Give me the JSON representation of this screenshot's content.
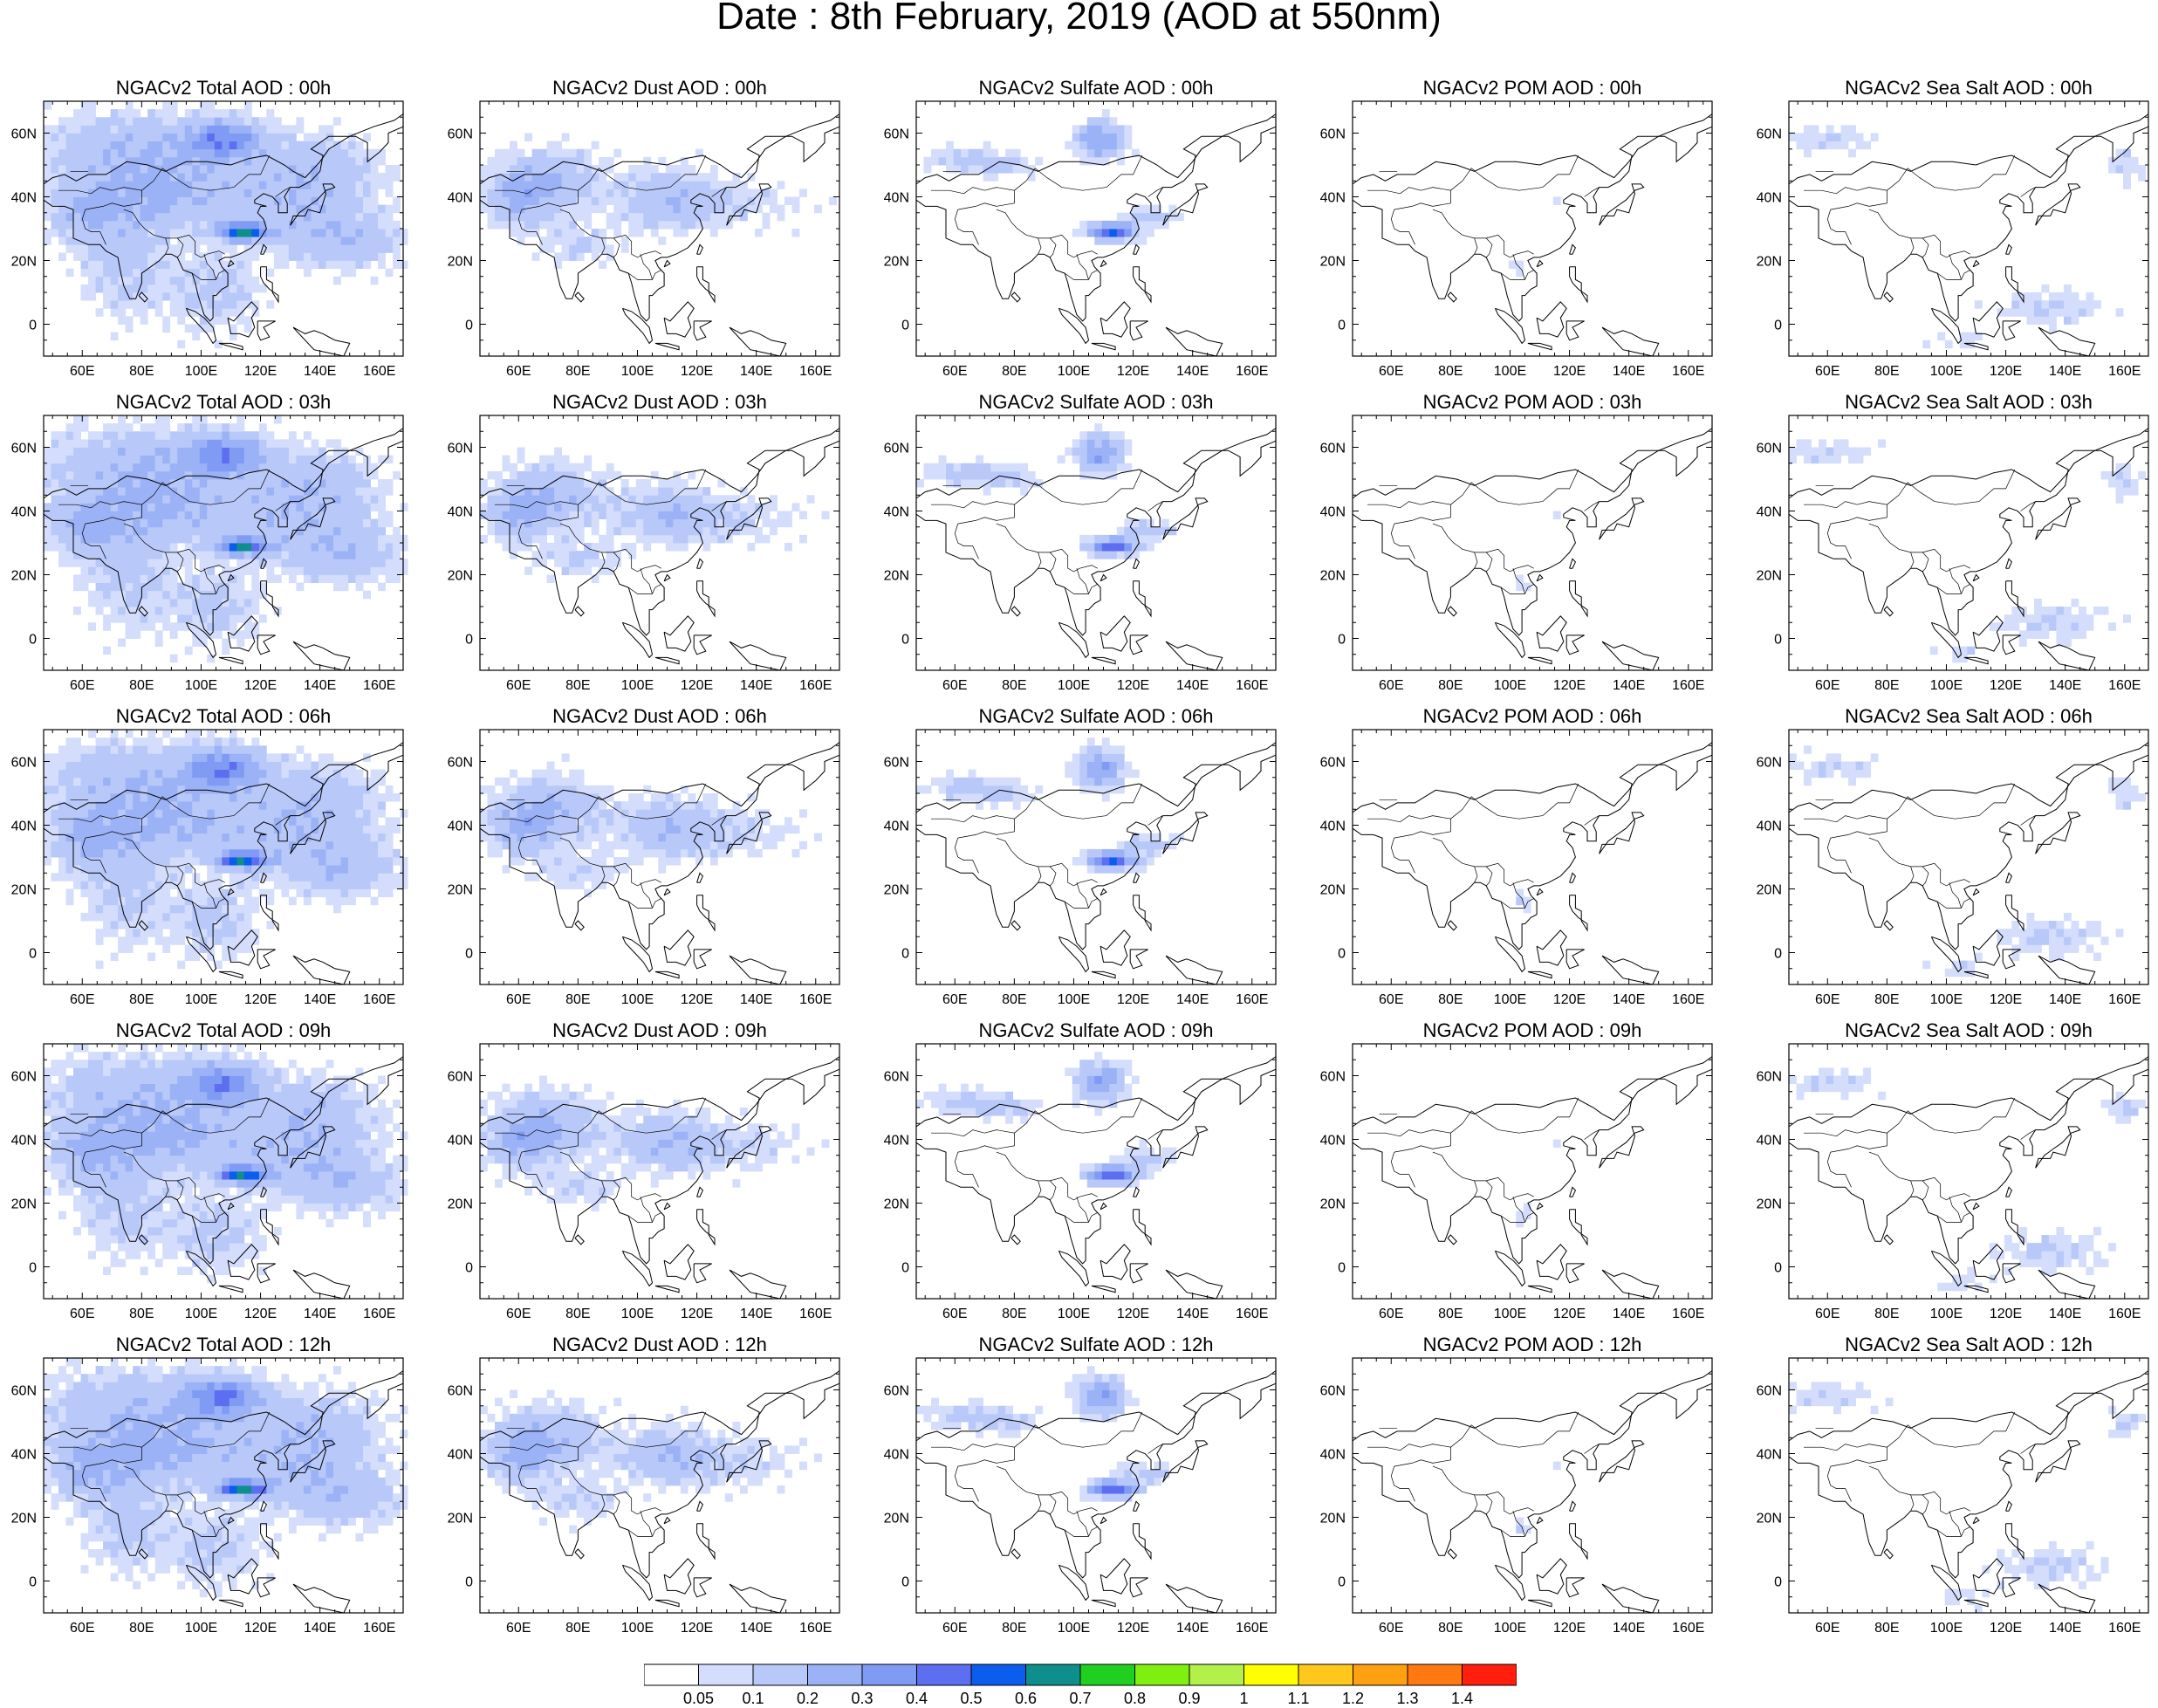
{
  "title": "Date : 8th February, 2019 (AOD at 550nm)",
  "map": {
    "lon_range": [
      47,
      168
    ],
    "lat_range": [
      -10,
      70
    ],
    "lon_ticks": [
      "60E",
      "80E",
      "100E",
      "120E",
      "140E",
      "160E"
    ],
    "lat_ticks": [
      "60N",
      "40N",
      "20N",
      "0"
    ],
    "lon_tick_values": [
      60,
      80,
      100,
      120,
      140,
      160
    ],
    "lat_tick_values": [
      60,
      40,
      20,
      0
    ],
    "background": "#ffffff",
    "coastline_color": "#000000"
  },
  "panel_titles": [
    [
      "NGACv2 Total AOD : 00h",
      "NGACv2 Dust AOD : 00h",
      "NGACv2 Sulfate AOD : 00h",
      "NGACv2 POM AOD : 00h",
      "NGACv2 Sea Salt AOD : 00h"
    ],
    [
      "NGACv2 Total AOD : 03h",
      "NGACv2 Dust AOD : 03h",
      "NGACv2 Sulfate AOD : 03h",
      "NGACv2 POM AOD : 03h",
      "NGACv2 Sea Salt AOD : 03h"
    ],
    [
      "NGACv2 Total AOD : 06h",
      "NGACv2 Dust AOD : 06h",
      "NGACv2 Sulfate AOD : 06h",
      "NGACv2 POM AOD : 06h",
      "NGACv2 Sea Salt AOD : 06h"
    ],
    [
      "NGACv2 Total AOD : 09h",
      "NGACv2 Dust AOD : 09h",
      "NGACv2 Sulfate AOD : 09h",
      "NGACv2 POM AOD : 09h",
      "NGACv2 Sea Salt  AOD : 09h"
    ],
    [
      "NGACv2 Total AOD  : 12h",
      "NGACv2 Dust AOD : 12h",
      "NGACv2 Sulfate AOD : 12h",
      "NGACv2 POM  AOD : 12h",
      "NGACv2 Sea Salt  AOD : 12h"
    ]
  ],
  "colorbar": {
    "colors": [
      "#ffffff",
      "#d4ddfb",
      "#b8c8f9",
      "#9cb2f6",
      "#809bf4",
      "#5d6ff0",
      "#0a5ded",
      "#0f8e8e",
      "#20d020",
      "#7ef00f",
      "#b4f04a",
      "#ffff00",
      "#ffc81a",
      "#ffa010",
      "#ff7810",
      "#ff1f0c"
    ],
    "labels": [
      "0.05",
      "0.1",
      "0.2",
      "0.3",
      "0.4",
      "0.5",
      "0.6",
      "0.7",
      "0.8",
      "0.9",
      "1",
      "1.1",
      "1.2",
      "1.3",
      "1.4"
    ]
  }
}
